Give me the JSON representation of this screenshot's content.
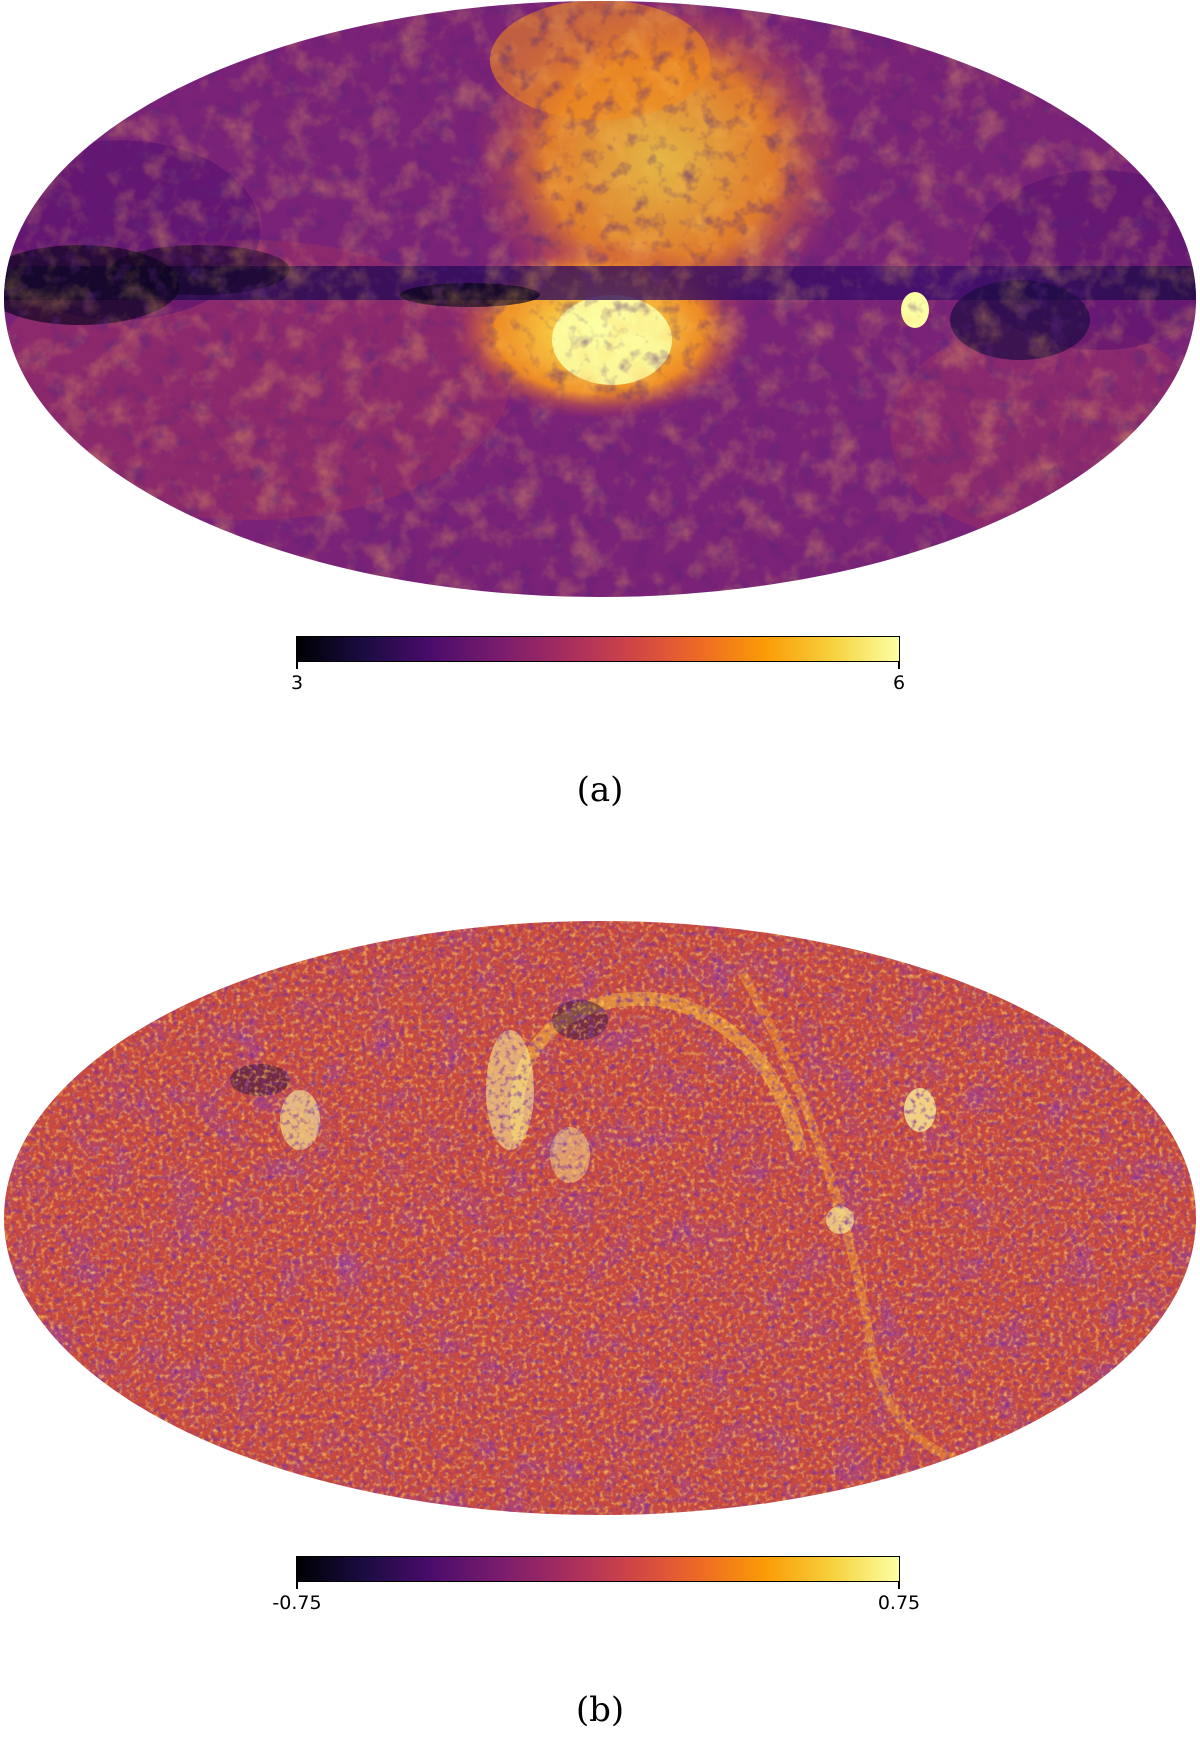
{
  "panels": [
    {
      "caption": "(a)",
      "colorbar": {
        "min_label": "3",
        "max_label": "6",
        "colormap": "inferno"
      }
    },
    {
      "caption": "(b)",
      "colorbar": {
        "min_label": "-0.75",
        "max_label": "0.75",
        "colormap": "inferno"
      }
    }
  ],
  "colors": {
    "inferno": [
      "#000004",
      "#1b0c41",
      "#4a0c6b",
      "#781c6d",
      "#a52c60",
      "#cf4446",
      "#ed6925",
      "#fb9b06",
      "#f7d13d",
      "#fcffa4"
    ]
  }
}
